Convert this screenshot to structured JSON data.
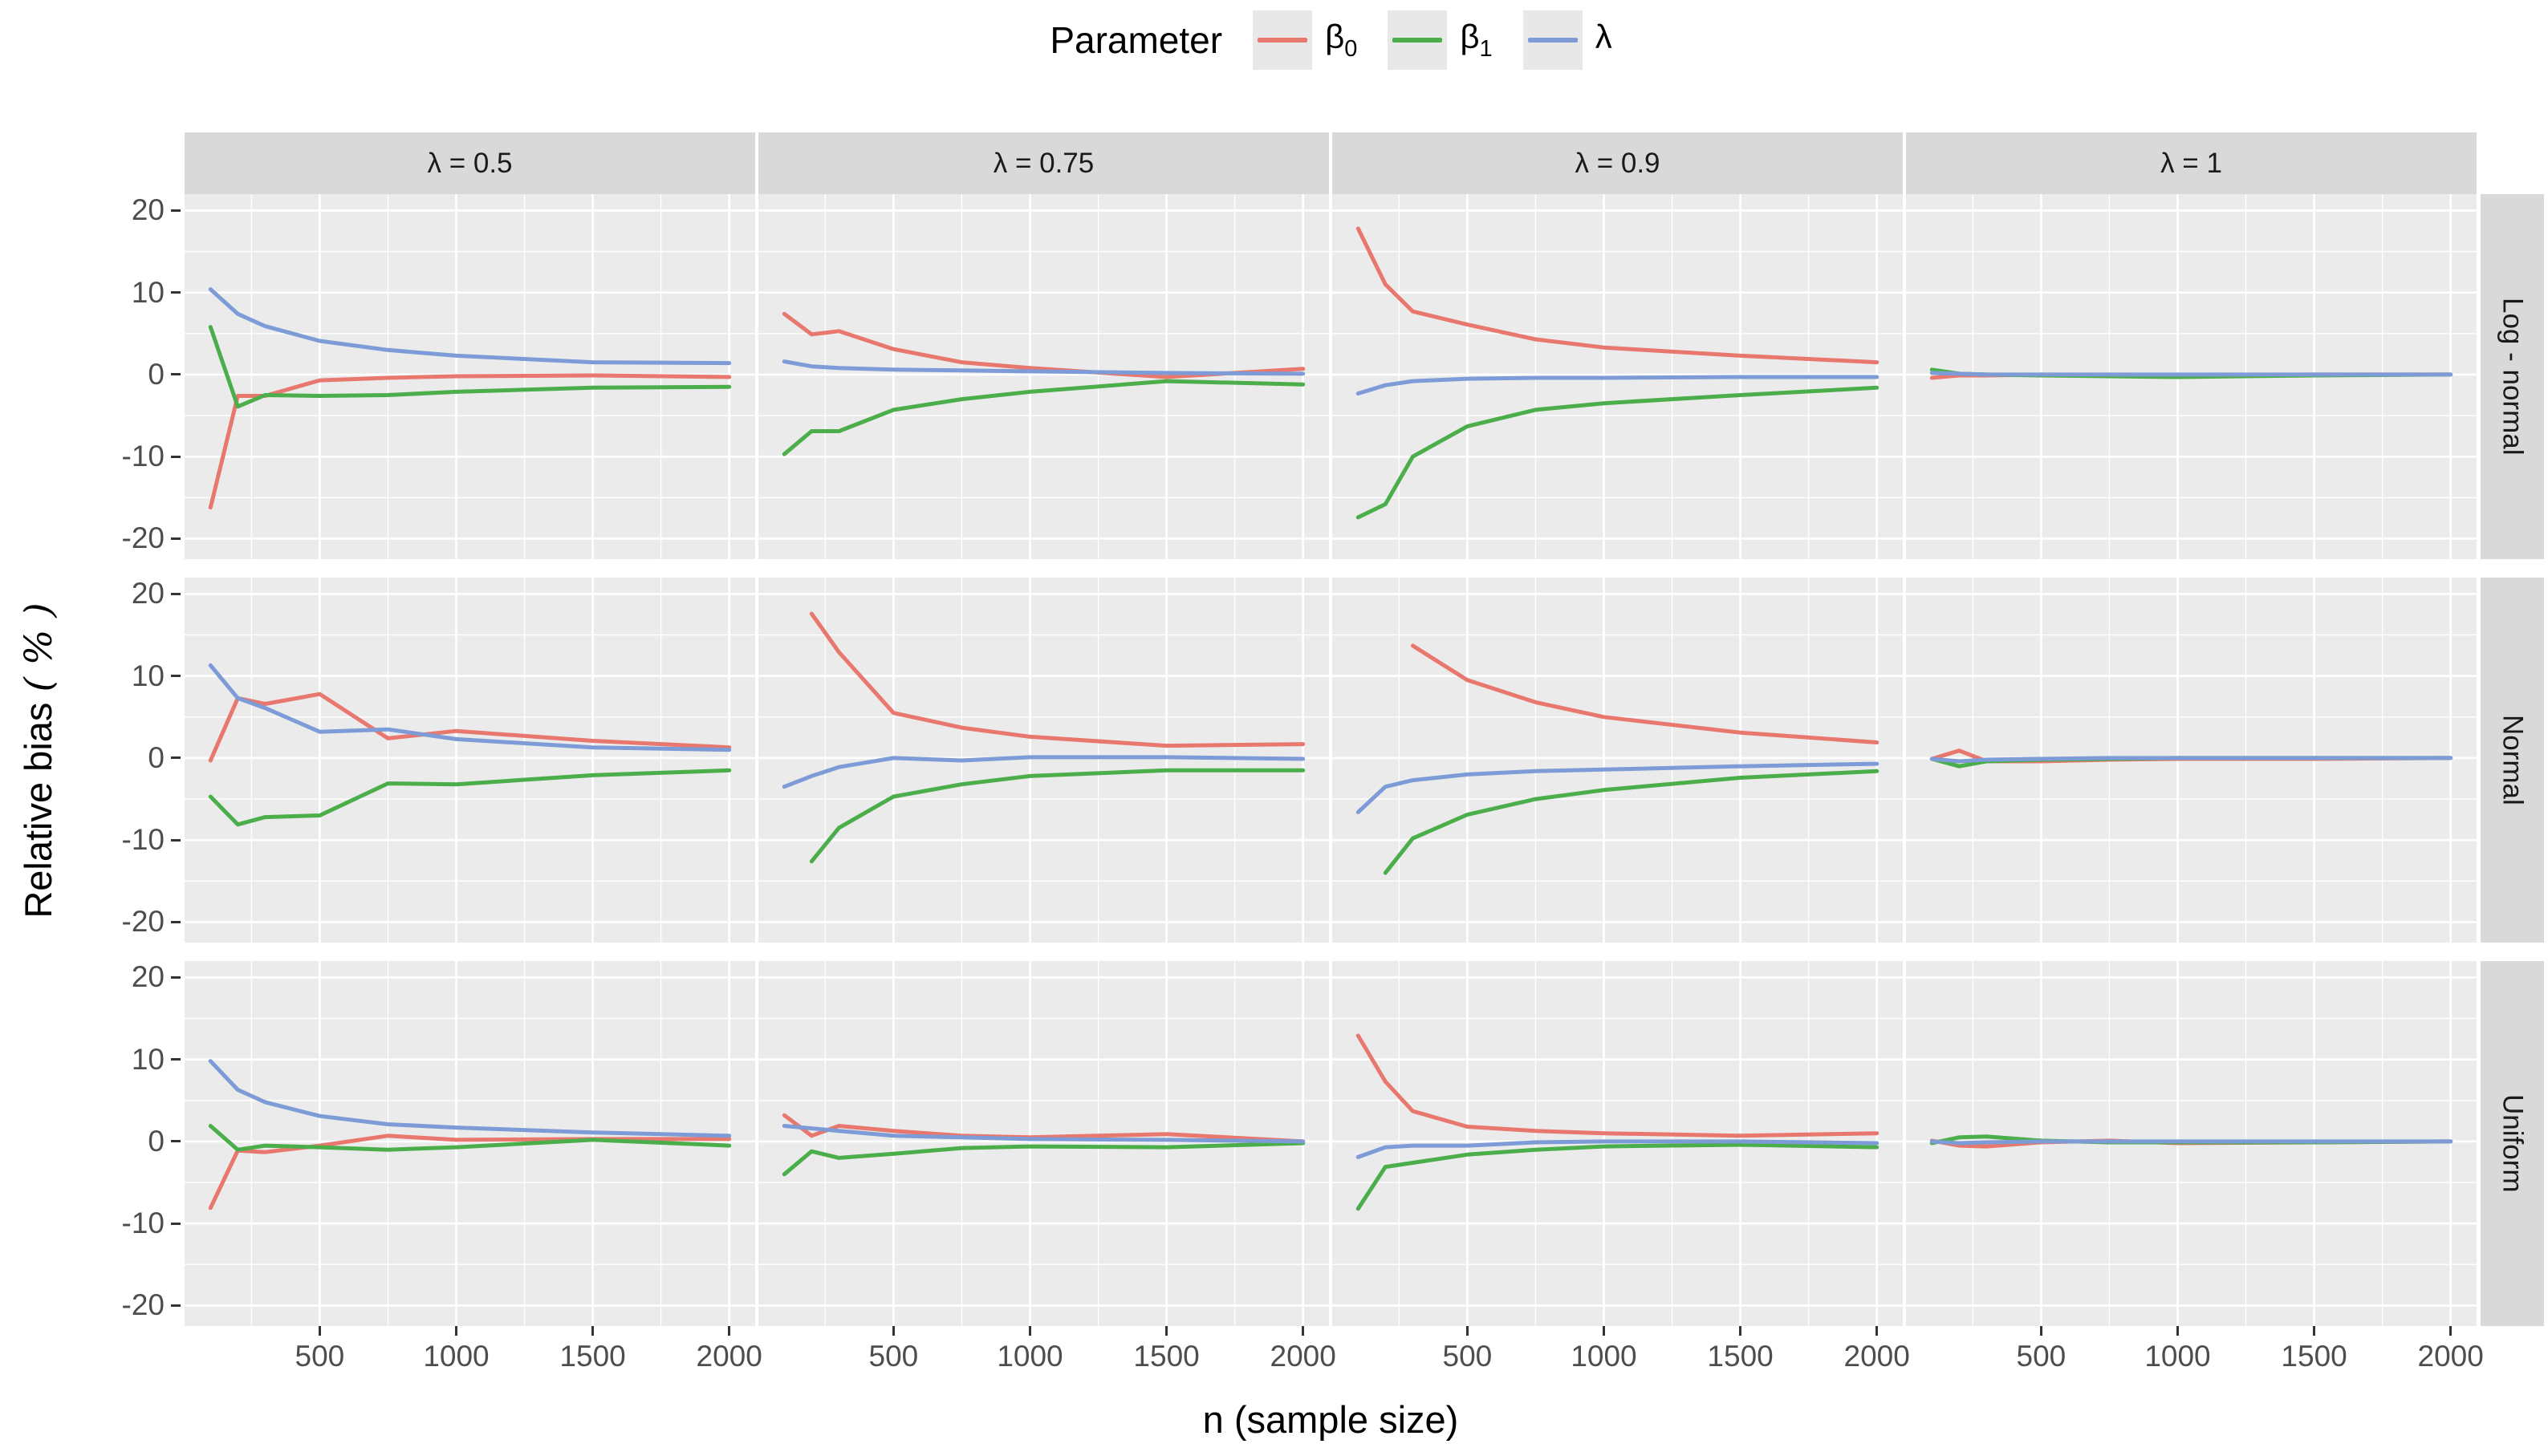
{
  "figure": {
    "legend": {
      "title": "Parameter",
      "entries": [
        {
          "sym": "β",
          "sub": "0",
          "series": "beta0",
          "color": "#E8776E"
        },
        {
          "sym": "β",
          "sub": "1",
          "series": "beta1",
          "color": "#4BAE4B"
        },
        {
          "sym": "λ",
          "sub": "",
          "series": "lambda",
          "color": "#7D9BD6"
        }
      ]
    },
    "xlabel": "n (sample size)",
    "ylabel_prefix": "Relative bias ",
    "ylabel_unit": "( % )"
  },
  "chart_data": {
    "type": "line",
    "title": "",
    "xlabel": "n (sample size)",
    "ylabel": "Relative bias ( % )",
    "x": [
      100,
      200,
      300,
      500,
      750,
      1000,
      1500,
      2000
    ],
    "xlim": [
      5,
      2095
    ],
    "ylim": [
      -22.5,
      22
    ],
    "x_ticks": [
      500,
      1000,
      1500,
      2000
    ],
    "x_minor": [
      250,
      750,
      1250,
      1750
    ],
    "y_ticks": [
      20,
      10,
      0,
      -10,
      -20
    ],
    "y_minor": [
      15,
      5,
      -5,
      -15
    ],
    "grid": "white major+minor on grey panel",
    "legend_position": "top",
    "facet_cols": [
      "λ = 0.5",
      "λ = 0.75",
      "λ = 0.9",
      "λ = 1"
    ],
    "facet_rows": [
      "Log - normal",
      "Normal",
      "Uniform"
    ],
    "series_order": [
      "beta0",
      "beta1",
      "lambda"
    ],
    "colors": {
      "beta0": "#E8776E",
      "beta1": "#4BAE4B",
      "lambda": "#7D9BD6",
      "panel_bg": "#EBEBEB",
      "strip_bg": "#D9D9D9",
      "grid": "#FFFFFF"
    },
    "panels": [
      {
        "row": "Log - normal",
        "col": "λ = 0.5",
        "beta0": [
          -16.2,
          -2.6,
          -2.6,
          -0.7,
          -0.4,
          -0.2,
          -0.1,
          -0.3
        ],
        "beta1": [
          5.8,
          -3.9,
          -2.5,
          -2.6,
          -2.5,
          -2.1,
          -1.6,
          -1.5
        ],
        "lambda": [
          10.4,
          7.4,
          5.9,
          4.1,
          3.0,
          2.3,
          1.5,
          1.4
        ]
      },
      {
        "row": "Log - normal",
        "col": "λ = 0.75",
        "beta0": [
          7.4,
          4.9,
          5.3,
          3.1,
          1.5,
          0.8,
          -0.3,
          0.7
        ],
        "beta1": [
          -9.7,
          -6.9,
          -6.9,
          -4.3,
          -3.0,
          -2.1,
          -0.8,
          -1.2
        ],
        "lambda": [
          1.6,
          1.0,
          0.8,
          0.6,
          0.5,
          0.4,
          0.2,
          0.1
        ]
      },
      {
        "row": "Log - normal",
        "col": "λ = 0.9",
        "beta0": [
          17.8,
          11.0,
          7.7,
          6.1,
          4.3,
          3.3,
          2.3,
          1.5
        ],
        "beta1": [
          -17.4,
          -15.8,
          -10.0,
          -6.3,
          -4.3,
          -3.5,
          -2.5,
          -1.6
        ],
        "lambda": [
          -2.3,
          -1.3,
          -0.8,
          -0.5,
          -0.4,
          -0.4,
          -0.3,
          -0.3
        ]
      },
      {
        "row": "Log - normal",
        "col": "λ = 1",
        "beta0": [
          -0.4,
          -0.1,
          -0.1,
          0,
          -0.1,
          -0.1,
          0,
          0
        ],
        "beta1": [
          0.6,
          0.1,
          0,
          -0.1,
          -0.2,
          -0.3,
          -0.1,
          0
        ],
        "lambda": [
          0.2,
          0.1,
          0,
          0,
          0,
          0,
          0,
          0
        ]
      },
      {
        "row": "Normal",
        "col": "λ = 0.5",
        "beta0": [
          -0.3,
          7.3,
          6.6,
          7.8,
          2.4,
          3.3,
          2.1,
          1.3
        ],
        "beta1": [
          -4.7,
          -8.1,
          -7.2,
          -7.0,
          -3.1,
          -3.2,
          -2.1,
          -1.5
        ],
        "lambda": [
          11.3,
          7.3,
          6.1,
          3.2,
          3.5,
          2.3,
          1.3,
          1.0
        ]
      },
      {
        "row": "Normal",
        "col": "λ = 0.75",
        "beta0": [
          null,
          17.6,
          12.9,
          5.5,
          3.7,
          2.6,
          1.5,
          1.7
        ],
        "beta1": [
          null,
          -12.6,
          -8.5,
          -4.7,
          -3.2,
          -2.2,
          -1.5,
          -1.5
        ],
        "lambda": [
          -3.5,
          -2.2,
          -1.1,
          0,
          -0.3,
          0.1,
          0.1,
          -0.1
        ]
      },
      {
        "row": "Normal",
        "col": "λ = 0.9",
        "beta0": [
          null,
          null,
          13.7,
          9.5,
          6.8,
          5.0,
          3.1,
          1.9
        ],
        "beta1": [
          null,
          -14.0,
          -9.8,
          -6.9,
          -5.0,
          -3.9,
          -2.4,
          -1.6
        ],
        "lambda": [
          -6.6,
          -3.5,
          -2.7,
          -2.0,
          -1.6,
          -1.4,
          -1.0,
          -0.7
        ]
      },
      {
        "row": "Normal",
        "col": "λ = 1",
        "beta0": [
          -0.1,
          0.9,
          -0.4,
          -0.4,
          -0.2,
          -0.1,
          -0.1,
          0
        ],
        "beta1": [
          -0.1,
          -1.0,
          -0.4,
          -0.2,
          -0.1,
          0,
          0,
          0
        ],
        "lambda": [
          -0.1,
          -0.4,
          -0.2,
          -0.1,
          0,
          0,
          0,
          0
        ]
      },
      {
        "row": "Uniform",
        "col": "λ = 0.5",
        "beta0": [
          -8.1,
          -1.1,
          -1.3,
          -0.5,
          0.7,
          0.2,
          0.3,
          0.3
        ],
        "beta1": [
          1.9,
          -1.0,
          -0.5,
          -0.7,
          -1.0,
          -0.7,
          0.2,
          -0.5
        ],
        "lambda": [
          9.8,
          6.3,
          4.8,
          3.1,
          2.1,
          1.7,
          1.1,
          0.7
        ]
      },
      {
        "row": "Uniform",
        "col": "λ = 0.75",
        "beta0": [
          3.2,
          0.7,
          1.9,
          1.3,
          0.7,
          0.5,
          0.9,
          0
        ],
        "beta1": [
          -4.0,
          -1.2,
          -2.0,
          -1.5,
          -0.8,
          -0.6,
          -0.7,
          -0.2
        ],
        "lambda": [
          1.9,
          1.6,
          1.3,
          0.7,
          0.5,
          0.3,
          0.2,
          0
        ]
      },
      {
        "row": "Uniform",
        "col": "λ = 0.9",
        "beta0": [
          12.9,
          7.3,
          3.7,
          1.8,
          1.3,
          1.0,
          0.7,
          1.0
        ],
        "beta1": [
          -8.2,
          -3.1,
          -2.6,
          -1.6,
          -1.0,
          -0.6,
          -0.4,
          -0.7
        ],
        "lambda": [
          -1.9,
          -0.7,
          -0.5,
          -0.5,
          -0.1,
          0,
          0,
          -0.2
        ]
      },
      {
        "row": "Uniform",
        "col": "λ = 1",
        "beta0": [
          0.1,
          -0.5,
          -0.6,
          -0.1,
          0.1,
          -0.2,
          -0.1,
          0
        ],
        "beta1": [
          -0.2,
          0.5,
          0.6,
          0.1,
          -0.1,
          -0.1,
          -0.1,
          0
        ],
        "lambda": [
          0,
          -0.2,
          -0.1,
          0,
          0,
          0,
          0,
          0
        ]
      }
    ]
  }
}
